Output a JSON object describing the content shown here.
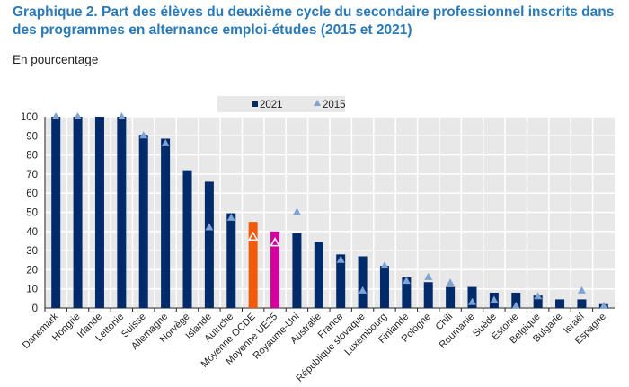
{
  "chart_data": {
    "type": "bar",
    "title": "Graphique 2. Part des élèves du deuxième cycle du secondaire professionnel inscrits dans des programmes en alternance emploi-études (2015 et 2021)",
    "subtitle": "En pourcentage",
    "ylim": [
      0,
      100
    ],
    "yticks": [
      0,
      10,
      20,
      30,
      40,
      50,
      60,
      70,
      80,
      90,
      100
    ],
    "grid": true,
    "legend_position": "top-right",
    "categories": [
      "Danemark",
      "Hongrie",
      "Irlande",
      "Lettonie",
      "Suisse",
      "Allemagne",
      "Norvège",
      "Islande",
      "Autriche",
      "Moyenne OCDE",
      "Moyenne UE25",
      "Royaume-Uni",
      "Australie",
      "France",
      "République slovaque",
      "Luxembourg",
      "Finlande",
      "Pologne",
      "Chili",
      "Roumanie",
      "Suède",
      "Estonie",
      "Belgique",
      "Bulgarie",
      "Israël",
      "Espagne"
    ],
    "series": [
      {
        "name": "2021",
        "kind": "bar",
        "color": "#002a6a",
        "values": [
          100,
          100,
          100,
          100,
          90.5,
          88.5,
          72,
          66,
          49.5,
          45,
          40,
          39,
          34.5,
          28,
          27,
          22,
          16,
          13.5,
          11,
          11,
          8,
          8,
          6.5,
          4.5,
          4.5,
          2
        ]
      },
      {
        "name": "2015",
        "kind": "marker-triangle",
        "color": "#7fa3d4",
        "values": [
          100,
          100,
          null,
          100,
          90,
          86,
          null,
          42,
          47,
          37,
          34,
          50,
          null,
          25,
          9,
          22,
          14,
          16,
          13,
          3,
          4,
          1,
          6,
          null,
          9,
          1
        ]
      }
    ],
    "highlight_colors": {
      "Moyenne OCDE": "#f05a0a",
      "Moyenne UE25": "#d4009b"
    }
  }
}
